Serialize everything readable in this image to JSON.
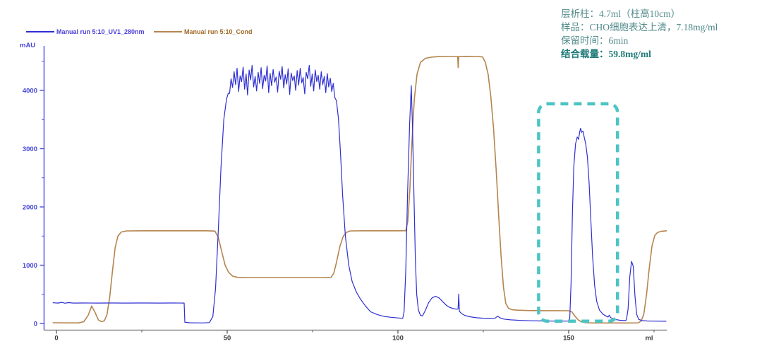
{
  "annotation": {
    "lines": [
      "层析柱：4.7ml（柱高10cm）",
      "样品：CHO细胞表达上清，7.18mg/ml",
      "保留时间：6min",
      "结合载量：59.8mg/ml"
    ],
    "normal_color": "#548b8b",
    "bold_color": "#1d7a78"
  },
  "chart_data": {
    "type": "line",
    "title": "",
    "xlabel": "ml",
    "ylabel": "mAU",
    "grid": false,
    "legend_position": "top-left",
    "axes": {
      "x": {
        "range": [
          -3.7,
          178.7
        ],
        "unit_label": "ml",
        "major_ticks": [
          {
            "value": 0,
            "label": "0"
          },
          {
            "value": 50,
            "label": "50"
          },
          {
            "value": 100,
            "label": "100"
          },
          {
            "value": 150,
            "label": "150"
          }
        ],
        "minor_ticks": [
          25,
          75,
          125,
          175
        ],
        "axis_color": "#8a8a8a",
        "tick_color": "#5a5a5a",
        "label_color": "#3a3a3a"
      },
      "y": {
        "range": [
          0,
          4750
        ],
        "unit_label": "mAU",
        "major_ticks": [
          {
            "value": 0,
            "label": "0"
          },
          {
            "value": 1000,
            "label": "1000"
          },
          {
            "value": 2000,
            "label": "2000"
          },
          {
            "value": 3000,
            "label": "3000"
          },
          {
            "value": 4000,
            "label": "4000"
          }
        ],
        "minor_ticks": [
          500,
          1500,
          2500,
          3500,
          4500
        ],
        "axis_color": "#7a7aec",
        "tick_color": "#4d4ddc",
        "label_color": "#4444d6"
      }
    },
    "highlight_box": {
      "x0": 141.2,
      "x1": 164.3,
      "y0": 40,
      "y1": 3770,
      "color": "#4cc4c4"
    },
    "series": [
      {
        "name": "Manual run 5:10_UV1_280nm",
        "color": "#2f2fd2",
        "label_color": "#4a3fd8",
        "width": 1.2,
        "points": [
          [
            -1,
            355
          ],
          [
            0.5,
            350
          ],
          [
            1.5,
            362
          ],
          [
            2.5,
            348
          ],
          [
            3.5,
            358
          ],
          [
            5,
            350
          ],
          [
            8,
            352
          ],
          [
            12,
            350
          ],
          [
            16,
            351
          ],
          [
            20,
            350
          ],
          [
            25,
            351
          ],
          [
            30,
            350
          ],
          [
            34,
            351
          ],
          [
            37.4,
            350
          ],
          [
            37.6,
            20
          ],
          [
            39,
            12
          ],
          [
            41,
            10
          ],
          [
            43,
            10
          ],
          [
            44.8,
            15
          ],
          [
            45.8,
            120
          ],
          [
            46.6,
            600
          ],
          [
            47.4,
            1600
          ],
          [
            48.2,
            2700
          ],
          [
            49,
            3500
          ],
          [
            49.8,
            3850
          ],
          [
            50.3,
            3950
          ],
          [
            50.7,
            3950
          ],
          [
            51.14,
            4200
          ],
          [
            51.58,
            4050
          ],
          [
            52.02,
            4320
          ],
          [
            52.46,
            4100
          ],
          [
            52.9,
            4380
          ],
          [
            53.34,
            3980
          ],
          [
            53.78,
            4250
          ],
          [
            54.22,
            4150
          ],
          [
            54.66,
            4400
          ],
          [
            55.1,
            4020
          ],
          [
            55.54,
            4280
          ],
          [
            55.98,
            3920
          ],
          [
            56.42,
            4350
          ],
          [
            56.86,
            4180
          ],
          [
            57.3,
            4430
          ],
          [
            57.74,
            4060
          ],
          [
            58.18,
            4240
          ],
          [
            58.62,
            3990
          ],
          [
            59.06,
            4310
          ],
          [
            59.5,
            4120
          ],
          [
            59.94,
            4390
          ],
          [
            60.38,
            4030
          ],
          [
            60.82,
            4260
          ],
          [
            61.26,
            4160
          ],
          [
            61.7,
            4420
          ],
          [
            62.14,
            3960
          ],
          [
            62.58,
            4290
          ],
          [
            63.02,
            4080
          ],
          [
            63.46,
            4360
          ],
          [
            63.9,
            4140
          ],
          [
            64.34,
            4230
          ],
          [
            64.78,
            3970
          ],
          [
            65.22,
            4330
          ],
          [
            65.66,
            4190
          ],
          [
            66.1,
            4410
          ],
          [
            66.54,
            4040
          ],
          [
            66.98,
            4270
          ],
          [
            67.42,
            4110
          ],
          [
            67.86,
            4370
          ],
          [
            68.3,
            3930
          ],
          [
            68.74,
            4300
          ],
          [
            69.18,
            4170
          ],
          [
            69.62,
            4250
          ],
          [
            70.06,
            4000
          ],
          [
            70.5,
            4340
          ],
          [
            70.94,
            4090
          ],
          [
            71.38,
            4380
          ],
          [
            71.82,
            4130
          ],
          [
            72.26,
            4220
          ],
          [
            72.7,
            3940
          ],
          [
            73.14,
            4310
          ],
          [
            73.58,
            4200
          ],
          [
            74.02,
            4430
          ],
          [
            74.46,
            4070
          ],
          [
            74.9,
            4280
          ],
          [
            75.34,
            3990
          ],
          [
            75.78,
            4350
          ],
          [
            76.22,
            4150
          ],
          [
            76.66,
            4260
          ],
          [
            77.1,
            4020
          ],
          [
            77.54,
            4320
          ],
          [
            77.98,
            4100
          ],
          [
            78.42,
            4240
          ],
          [
            78.86,
            3960
          ],
          [
            79.3,
            4290
          ],
          [
            79.74,
            4060
          ],
          [
            80.18,
            4210
          ],
          [
            80.62,
            3980
          ],
          [
            81.06,
            4120
          ],
          [
            81.5,
            3880
          ],
          [
            82,
            3820
          ],
          [
            82.6,
            3500
          ],
          [
            83.2,
            2900
          ],
          [
            83.8,
            2200
          ],
          [
            84.6,
            1500
          ],
          [
            85.6,
            1000
          ],
          [
            86.6,
            720
          ],
          [
            87.8,
            540
          ],
          [
            89,
            420
          ],
          [
            90.5,
            300
          ],
          [
            92,
            200
          ],
          [
            94,
            150
          ],
          [
            96,
            120
          ],
          [
            98,
            105
          ],
          [
            100,
            95
          ],
          [
            101.4,
            88
          ],
          [
            101.8,
            200
          ],
          [
            102.3,
            900
          ],
          [
            102.8,
            2200
          ],
          [
            103.4,
            3400
          ],
          [
            103.9,
            4080
          ],
          [
            104.3,
            3300
          ],
          [
            104.7,
            2200
          ],
          [
            105.1,
            1100
          ],
          [
            105.5,
            500
          ],
          [
            106,
            230
          ],
          [
            106.6,
            140
          ],
          [
            107.2,
            130
          ],
          [
            108,
            220
          ],
          [
            109,
            360
          ],
          [
            110,
            440
          ],
          [
            111,
            465
          ],
          [
            112,
            440
          ],
          [
            113,
            380
          ],
          [
            114,
            320
          ],
          [
            115,
            280
          ],
          [
            116.2,
            255
          ],
          [
            117.2,
            245
          ],
          [
            117.6,
            250
          ],
          [
            117.8,
            505
          ],
          [
            118,
            210
          ],
          [
            118.6,
            170
          ],
          [
            119.5,
            140
          ],
          [
            121,
            115
          ],
          [
            123,
            98
          ],
          [
            125,
            90
          ],
          [
            127,
            86
          ],
          [
            128.4,
            88
          ],
          [
            129.2,
            125
          ],
          [
            130,
            95
          ],
          [
            131,
            75
          ],
          [
            133,
            62
          ],
          [
            136,
            52
          ],
          [
            139,
            46
          ],
          [
            143,
            42
          ],
          [
            147,
            40
          ],
          [
            149.9,
            42
          ],
          [
            150.3,
            80
          ],
          [
            150.7,
            700
          ],
          [
            151.1,
            1900
          ],
          [
            151.5,
            2700
          ],
          [
            152,
            3080
          ],
          [
            152.5,
            3200
          ],
          [
            152.9,
            3160
          ],
          [
            153.2,
            3280
          ],
          [
            153.5,
            3350
          ],
          [
            153.8,
            3280
          ],
          [
            154.2,
            3300
          ],
          [
            154.6,
            3180
          ],
          [
            155,
            3080
          ],
          [
            155.5,
            2850
          ],
          [
            156,
            2400
          ],
          [
            156.5,
            1750
          ],
          [
            157,
            1150
          ],
          [
            157.6,
            650
          ],
          [
            158.2,
            380
          ],
          [
            159,
            230
          ],
          [
            160,
            160
          ],
          [
            161,
            125
          ],
          [
            161.5,
            110
          ],
          [
            161.9,
            140
          ],
          [
            162.3,
            100
          ],
          [
            163.5,
            70
          ],
          [
            165,
            55
          ],
          [
            166.4,
            50
          ],
          [
            166.9,
            60
          ],
          [
            167.4,
            250
          ],
          [
            167.9,
            800
          ],
          [
            168.4,
            1065
          ],
          [
            168.9,
            980
          ],
          [
            169.4,
            480
          ],
          [
            169.9,
            160
          ],
          [
            170.5,
            70
          ],
          [
            171.5,
            48
          ],
          [
            173,
            42
          ],
          [
            175,
            40
          ],
          [
            178.5,
            38
          ]
        ]
      },
      {
        "name": "Manual run 5:10_Cond",
        "color": "#b5854f",
        "label_color": "#a06a28",
        "width": 1.6,
        "points": [
          [
            -1,
            12
          ],
          [
            3,
            10
          ],
          [
            6.5,
            10
          ],
          [
            8,
            30
          ],
          [
            9.3,
            140
          ],
          [
            10.3,
            300
          ],
          [
            11.3,
            190
          ],
          [
            12.3,
            60
          ],
          [
            13.2,
            32
          ],
          [
            14,
            45
          ],
          [
            14.8,
            150
          ],
          [
            15.6,
            450
          ],
          [
            16.4,
            900
          ],
          [
            17.2,
            1300
          ],
          [
            18,
            1500
          ],
          [
            19,
            1570
          ],
          [
            20.5,
            1588
          ],
          [
            25,
            1590
          ],
          [
            30,
            1590
          ],
          [
            35,
            1590
          ],
          [
            40,
            1590
          ],
          [
            44,
            1590
          ],
          [
            46.4,
            1585
          ],
          [
            47.4,
            1480
          ],
          [
            48.4,
            1230
          ],
          [
            49.4,
            1000
          ],
          [
            50.4,
            880
          ],
          [
            51.6,
            812
          ],
          [
            53,
            792
          ],
          [
            56,
            788
          ],
          [
            60,
            788
          ],
          [
            65,
            788
          ],
          [
            70,
            788
          ],
          [
            75,
            788
          ],
          [
            78,
            788
          ],
          [
            80.4,
            792
          ],
          [
            81.2,
            860
          ],
          [
            82,
            1050
          ],
          [
            83,
            1320
          ],
          [
            84,
            1500
          ],
          [
            85,
            1565
          ],
          [
            86,
            1588
          ],
          [
            90,
            1590
          ],
          [
            95,
            1590
          ],
          [
            100,
            1590
          ],
          [
            102.3,
            1592
          ],
          [
            102.9,
            1750
          ],
          [
            103.5,
            2300
          ],
          [
            104.1,
            3100
          ],
          [
            104.8,
            3850
          ],
          [
            105.6,
            4280
          ],
          [
            106.6,
            4480
          ],
          [
            108,
            4550
          ],
          [
            110,
            4572
          ],
          [
            112,
            4580
          ],
          [
            115,
            4582
          ],
          [
            117.5,
            4582
          ],
          [
            117.65,
            4390
          ],
          [
            117.8,
            4582
          ],
          [
            120,
            4584
          ],
          [
            123,
            4582
          ],
          [
            124.8,
            4575
          ],
          [
            125.6,
            4480
          ],
          [
            126.4,
            4280
          ],
          [
            127.2,
            3900
          ],
          [
            128,
            3350
          ],
          [
            128.8,
            2600
          ],
          [
            129.5,
            1850
          ],
          [
            130.2,
            1150
          ],
          [
            130.9,
            620
          ],
          [
            131.6,
            340
          ],
          [
            132.4,
            260
          ],
          [
            133.5,
            235
          ],
          [
            135,
            228
          ],
          [
            138,
            222
          ],
          [
            142,
            220
          ],
          [
            146,
            220
          ],
          [
            150,
            218
          ],
          [
            150.9,
            200
          ],
          [
            151.8,
            130
          ],
          [
            152.8,
            60
          ],
          [
            153.8,
            25
          ],
          [
            155,
            12
          ],
          [
            157,
            8
          ],
          [
            160,
            8
          ],
          [
            164,
            8
          ],
          [
            168,
            8
          ],
          [
            170.3,
            10
          ],
          [
            171.2,
            40
          ],
          [
            172,
            160
          ],
          [
            172.8,
            500
          ],
          [
            173.6,
            950
          ],
          [
            174.4,
            1330
          ],
          [
            175.2,
            1510
          ],
          [
            176,
            1560
          ],
          [
            177,
            1580
          ],
          [
            178.6,
            1590
          ]
        ]
      }
    ]
  }
}
